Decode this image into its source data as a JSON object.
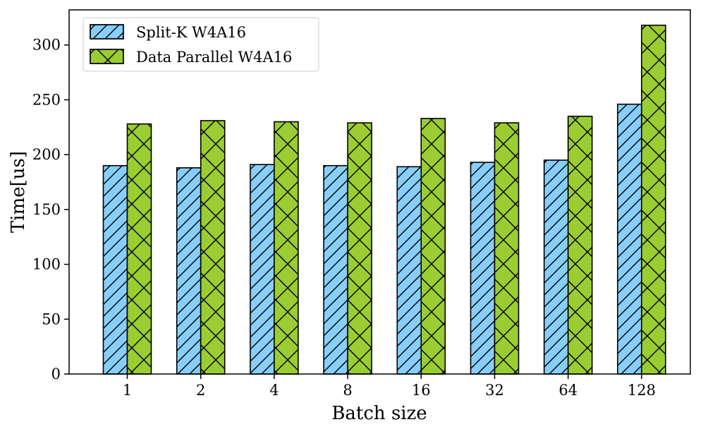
{
  "chart_data": {
    "type": "bar",
    "categories": [
      "1",
      "2",
      "4",
      "8",
      "16",
      "32",
      "64",
      "128"
    ],
    "series": [
      {
        "name": "Split-K W4A16",
        "values": [
          190,
          188,
          191,
          190,
          189,
          193,
          195,
          246
        ],
        "color": "#87cefa",
        "hatch": "diagonal"
      },
      {
        "name": "Data Parallel W4A16",
        "values": [
          228,
          231,
          230,
          229,
          233,
          229,
          235,
          318
        ],
        "color": "#9acd32",
        "hatch": "cross"
      }
    ],
    "title": "",
    "xlabel": "Batch size",
    "ylabel": "Time[us]",
    "ylim": [
      0,
      332
    ],
    "yticks": [
      "0",
      "50",
      "100",
      "150",
      "200",
      "250",
      "300"
    ],
    "legend_position": "top-left",
    "grid": false
  }
}
